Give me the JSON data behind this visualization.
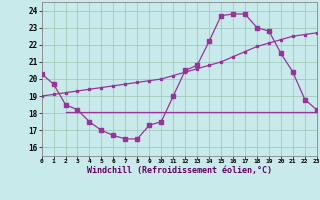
{
  "background_color": "#c8eaea",
  "grid_color": "#a0ccbb",
  "line_color": "#993399",
  "spine_color": "#888888",
  "x_labels": [
    "0",
    "1",
    "2",
    "3",
    "4",
    "5",
    "6",
    "7",
    "8",
    "9",
    "10",
    "11",
    "12",
    "13",
    "14",
    "15",
    "16",
    "17",
    "18",
    "19",
    "20",
    "21",
    "22",
    "23"
  ],
  "xlim": [
    0,
    23
  ],
  "ylim": [
    15.5,
    24.5
  ],
  "y_ticks": [
    16,
    17,
    18,
    19,
    20,
    21,
    22,
    23,
    24
  ],
  "xlabel": "Windchill (Refroidissement éolien,°C)",
  "series1_x": [
    0,
    1,
    2,
    3,
    4,
    5,
    6,
    7,
    8,
    9,
    10,
    11,
    12,
    13,
    14,
    15,
    16,
    17,
    18,
    19,
    20,
    21,
    22,
    23
  ],
  "series1_y": [
    20.3,
    19.7,
    18.5,
    18.2,
    17.5,
    17.0,
    16.7,
    16.5,
    16.5,
    17.3,
    17.5,
    19.0,
    20.5,
    20.8,
    22.2,
    23.7,
    23.8,
    23.8,
    23.0,
    22.8,
    21.5,
    20.4,
    18.8,
    18.2
  ],
  "series2_x": [
    0,
    1,
    2,
    3,
    4,
    5,
    6,
    7,
    8,
    9,
    10,
    11,
    12,
    13,
    14,
    15,
    16,
    17,
    18,
    19,
    20,
    21,
    22,
    23
  ],
  "series2_y": [
    19.0,
    19.1,
    19.2,
    19.3,
    19.4,
    19.5,
    19.6,
    19.7,
    19.8,
    19.9,
    20.0,
    20.2,
    20.4,
    20.6,
    20.8,
    21.0,
    21.3,
    21.6,
    21.9,
    22.1,
    22.3,
    22.5,
    22.6,
    22.7
  ],
  "series3_x": [
    2,
    23
  ],
  "series3_y": [
    18.1,
    18.1
  ]
}
